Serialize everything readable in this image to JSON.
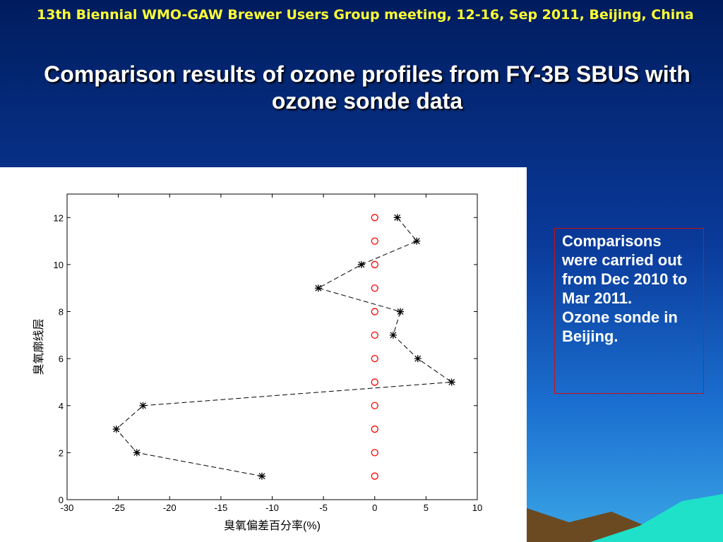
{
  "header": {
    "meeting": "13th Biennial WMO-GAW Brewer Users Group meeting, 12-16, Sep 2011, Beijing, China",
    "title": "Comparison results of ozone profiles from FY-3B SBUS with ozone sonde data"
  },
  "note": [
    "Comparisons were carried out from Dec 2010 to Mar 2011.",
    "Ozone sonde in Beijing."
  ],
  "chart_data": {
    "type": "scatter",
    "xlabel": "臭氧偏差百分率(%)",
    "ylabel": "臭氧廓线层",
    "xlim": [
      -30,
      10
    ],
    "xticks": [
      -30,
      -25,
      -20,
      -15,
      -10,
      -5,
      0,
      5,
      10
    ],
    "ylim": [
      0,
      13
    ],
    "yticks": [
      0,
      2,
      4,
      6,
      8,
      10,
      12
    ],
    "series": [
      {
        "marker": "star",
        "line": "dashed",
        "color": "#000000",
        "x": [
          -11,
          -23.2,
          -25.2,
          -22.6,
          7.5,
          4.2,
          1.8,
          2.5,
          -5.5,
          -1.3,
          4.1,
          2.2
        ],
        "y": [
          1,
          2,
          3,
          4,
          5,
          6,
          7,
          8,
          9,
          10,
          11,
          12
        ]
      },
      {
        "marker": "circle",
        "line": "none",
        "color": "#ff0000",
        "x": [
          0,
          0,
          0,
          0,
          0,
          0,
          0,
          0,
          0,
          0,
          0,
          0
        ],
        "y": [
          1,
          2,
          3,
          4,
          5,
          6,
          7,
          8,
          9,
          10,
          11,
          12
        ]
      }
    ]
  }
}
